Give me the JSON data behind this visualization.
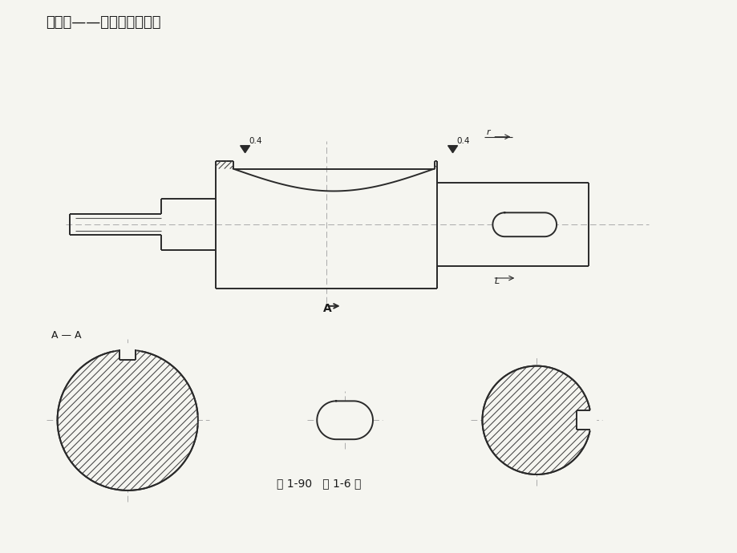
{
  "title": "第一章——分析结构工艺性",
  "caption": "图 1-90   题 1-6 图",
  "section_label": "A — A",
  "background": "#f5f5f0",
  "line_color": "#2a2a2a",
  "hatch_color": "#444444",
  "text_color": "#1a1a1a",
  "font_size_title": 13,
  "font_size_caption": 10,
  "font_size_label": 9
}
